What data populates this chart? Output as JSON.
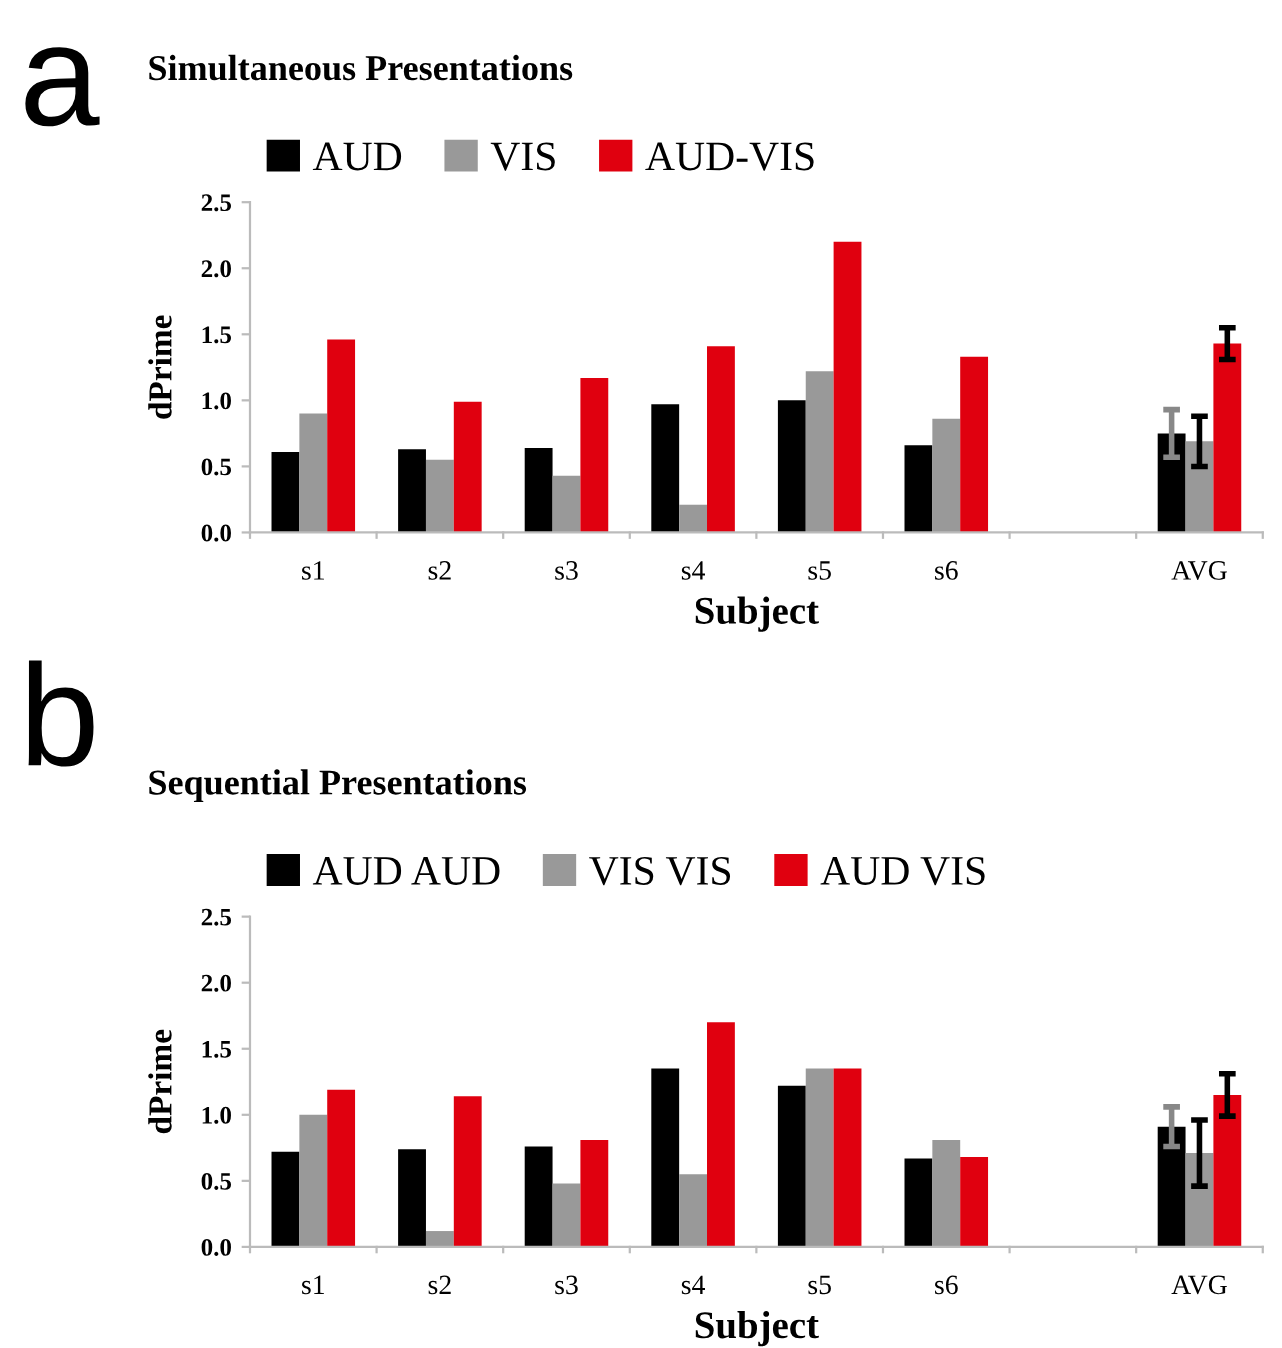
{
  "chart_data": [
    {
      "type": "bar",
      "title": "Simultaneous Presentations",
      "xlabel": "Subject",
      "ylabel": "dPrime",
      "annotations": [
        "a"
      ],
      "categories": [
        "s1",
        "s2",
        "s3",
        "s4",
        "s5",
        "s6",
        null,
        "AVG"
      ],
      "series": [
        {
          "name": "AUD",
          "color": "#000000",
          "values": [
            0.61,
            0.63,
            0.64,
            0.97,
            1.0,
            0.66,
            null,
            0.75
          ],
          "errors": [
            null,
            null,
            null,
            null,
            null,
            null,
            null,
            0.18
          ]
        },
        {
          "name": "VIS",
          "color": "#999999",
          "values": [
            0.9,
            0.55,
            0.43,
            0.21,
            1.22,
            0.86,
            null,
            0.69
          ],
          "errors": [
            null,
            null,
            null,
            null,
            null,
            null,
            null,
            0.19
          ]
        },
        {
          "name": "AUD-VIS",
          "color": "#e0000f",
          "values": [
            1.46,
            0.99,
            1.17,
            1.41,
            2.2,
            1.33,
            null,
            1.43
          ],
          "errors": [
            null,
            null,
            null,
            null,
            null,
            null,
            null,
            0.12
          ]
        }
      ],
      "ylim": [
        0,
        2.5
      ],
      "yticks": [
        {
          "value": 0,
          "label": "0.0"
        },
        0.5,
        {
          "value": 1,
          "label": "1.0"
        },
        1.5,
        {
          "value": 2,
          "label": "2.0"
        },
        2.5
      ],
      "grid": false,
      "legend": "top left"
    },
    {
      "type": "bar",
      "title": "Sequential Presentations",
      "xlabel": "Subject",
      "ylabel": "dPrime",
      "annotations": [
        "b"
      ],
      "categories": [
        "s1",
        "s2",
        "s3",
        "s4",
        "s5",
        "s6",
        null,
        "AVG"
      ],
      "series": [
        {
          "name": "AUD AUD",
          "color": "#000000",
          "values": [
            0.72,
            0.74,
            0.76,
            1.35,
            1.22,
            0.67,
            null,
            0.91
          ],
          "errors": [
            null,
            null,
            null,
            null,
            null,
            null,
            null,
            0.15
          ]
        },
        {
          "name": "VIS VIS",
          "color": "#999999",
          "values": [
            1.0,
            0.12,
            0.48,
            0.55,
            1.35,
            0.81,
            null,
            0.71
          ],
          "errors": [
            null,
            null,
            null,
            null,
            null,
            null,
            null,
            0.25
          ]
        },
        {
          "name": "AUD VIS",
          "color": "#e0000f",
          "values": [
            1.19,
            1.14,
            0.81,
            1.7,
            1.35,
            0.68,
            null,
            1.15
          ],
          "errors": [
            null,
            null,
            null,
            null,
            null,
            null,
            null,
            0.16
          ]
        }
      ],
      "ylim": [
        0,
        2.5
      ],
      "yticks": [
        {
          "value": 0,
          "label": "0.0"
        },
        0.5,
        {
          "value": 1,
          "label": "1.0"
        },
        1.5,
        {
          "value": 2,
          "label": "2.0"
        },
        2.5
      ],
      "grid": false,
      "legend": "top left"
    }
  ]
}
